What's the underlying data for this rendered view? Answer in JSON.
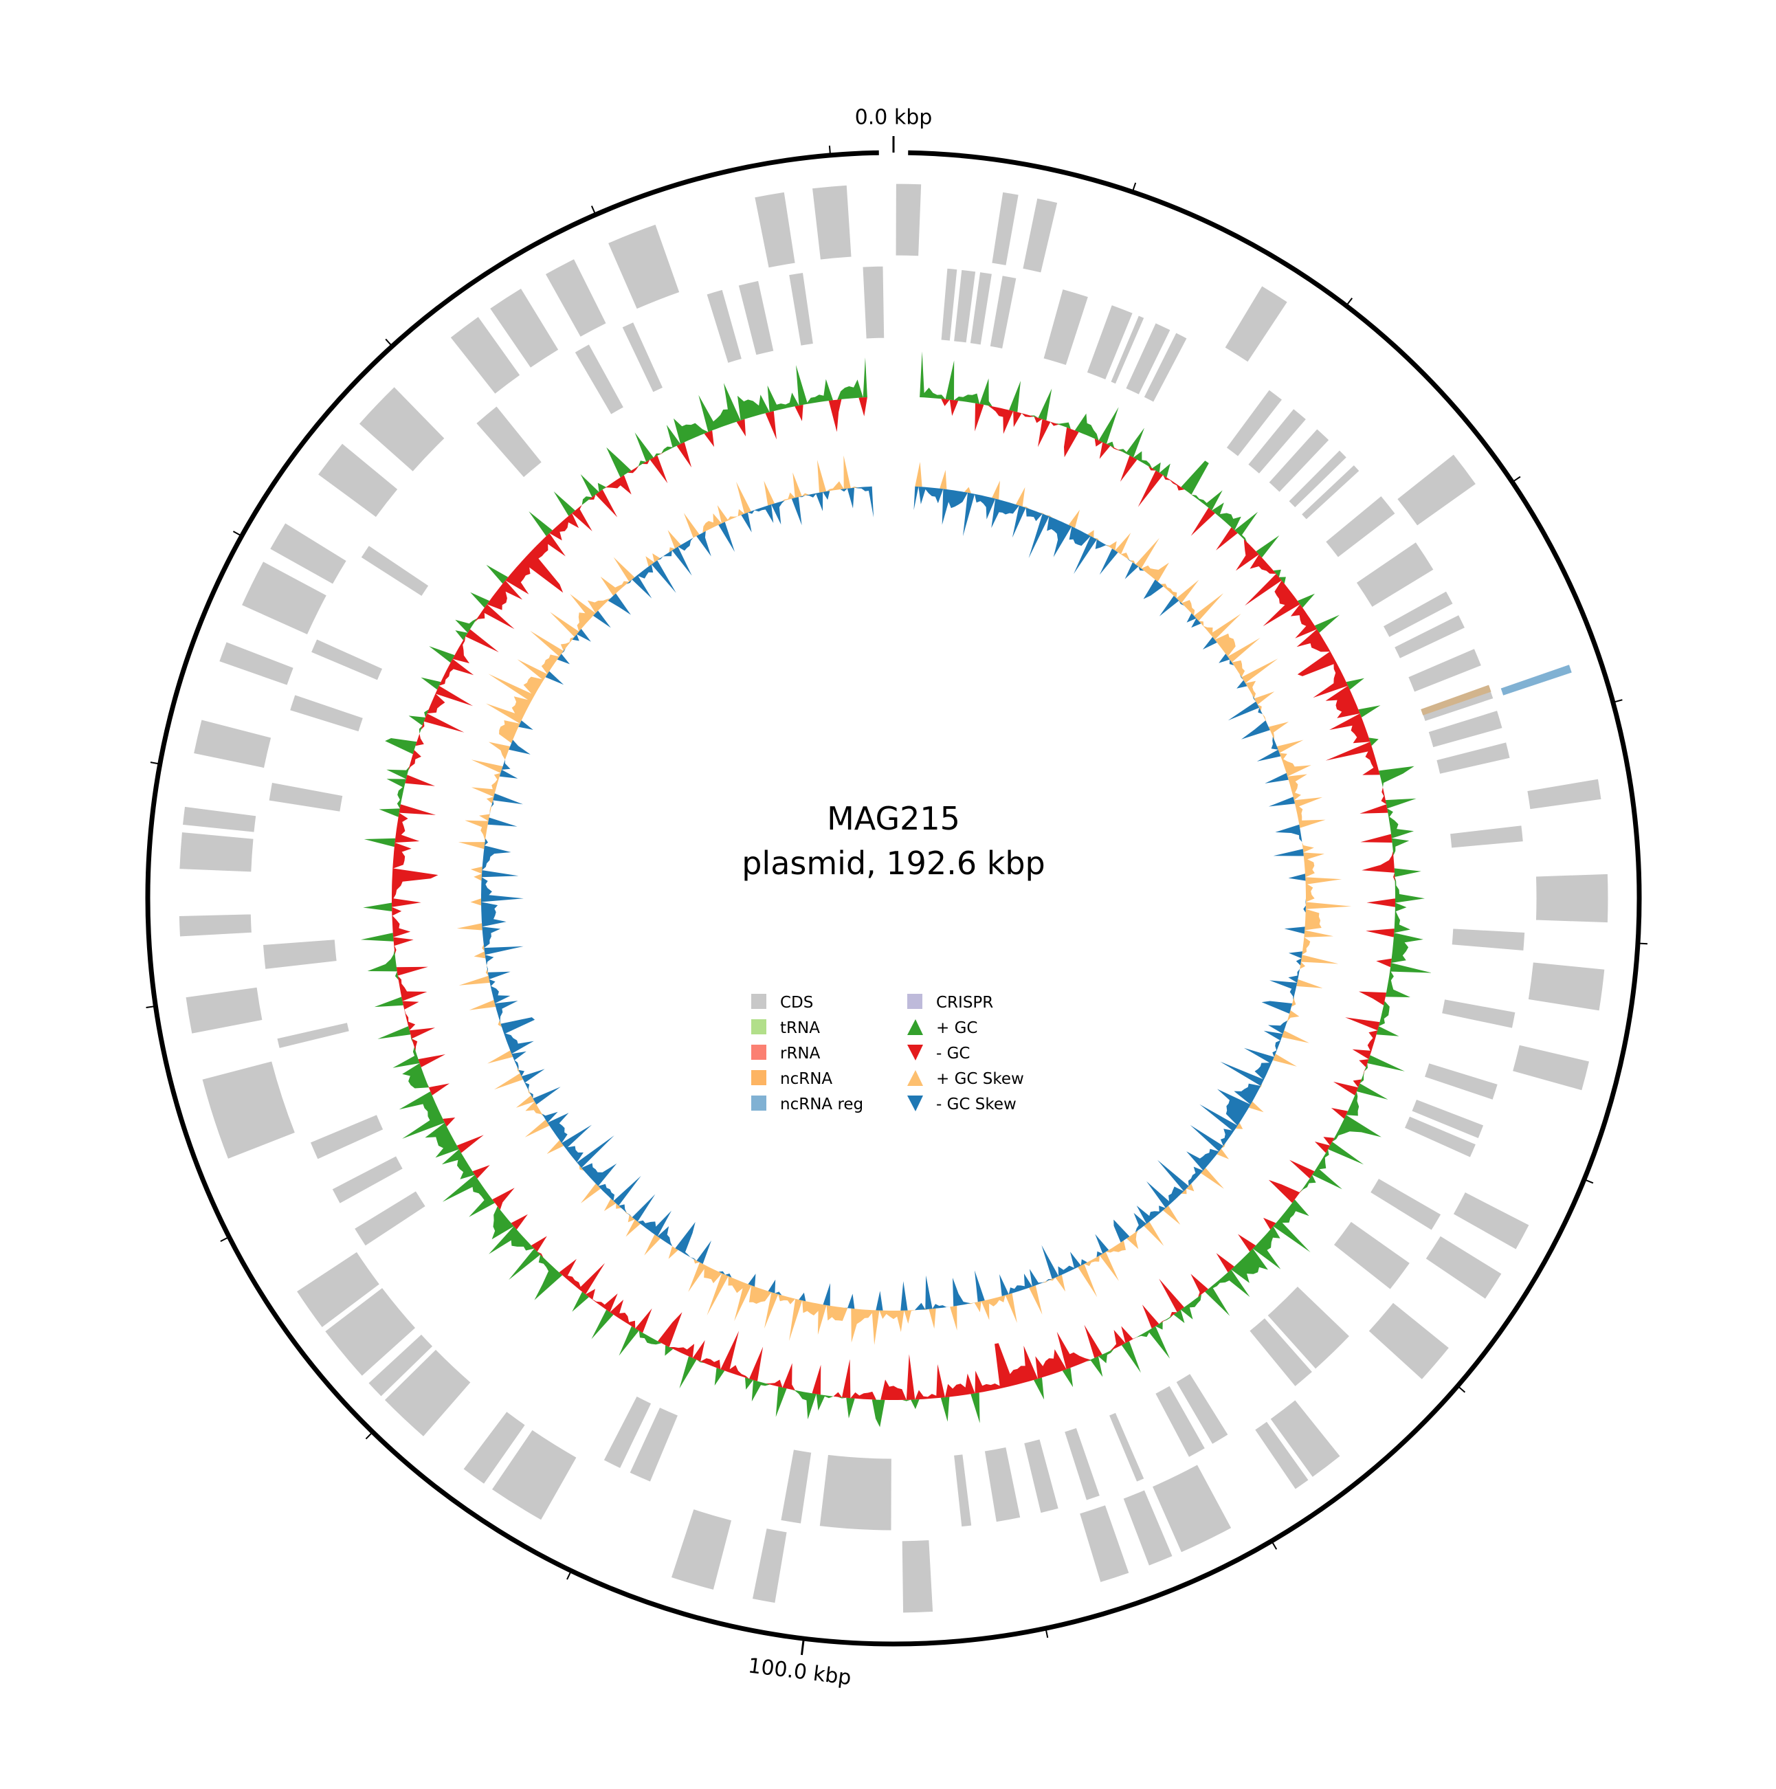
{
  "plot": {
    "title_line1": "MAG215",
    "title_line2": "plasmid, 192.6 kbp",
    "total_kbp": 192.6,
    "tick_labels": [
      {
        "kbp": 0,
        "text": "0.0 kbp"
      },
      {
        "kbp": 100,
        "text": "100.0 kbp"
      }
    ],
    "minor_tick_step_kbp": 10
  },
  "legend": [
    {
      "label": "CDS",
      "color": "#c8c8c8",
      "marker": "square"
    },
    {
      "label": "tRNA",
      "color": "#b2df8a",
      "marker": "square"
    },
    {
      "label": "rRNA",
      "color": "#fb8072",
      "marker": "square"
    },
    {
      "label": "ncRNA",
      "color": "#fdb462",
      "marker": "square"
    },
    {
      "label": "ncRNA reg",
      "color": "#80b1d3",
      "marker": "square"
    },
    {
      "label": "CRISPR",
      "color": "#bebada",
      "marker": "square"
    },
    {
      "label": "+ GC",
      "color": "#33a02c",
      "marker": "triangle-up"
    },
    {
      "label": "- GC",
      "color": "#e31a1c",
      "marker": "triangle-down"
    },
    {
      "label": "+ GC Skew",
      "color": "#fdbf6f",
      "marker": "triangle-up"
    },
    {
      "label": "- GC Skew",
      "color": "#1f78b4",
      "marker": "triangle-down"
    }
  ],
  "colors": {
    "outline": "#000000",
    "cds": "#c8c8c8",
    "gc_pos": "#33a02c",
    "gc_neg": "#e31a1c",
    "skew_pos": "#fdbf6f",
    "skew_neg": "#1f78b4",
    "ncrna": "#d2b48c",
    "ncrna_reg": "#80b1d3"
  },
  "features": {
    "forward_strand_cds": [
      [
        0.1,
        1.2
      ],
      [
        4.7,
        5.4
      ],
      [
        6.2,
        7.1
      ],
      [
        16.6,
        17.9
      ],
      [
        27.6,
        29.2
      ],
      [
        43.0,
        43.9
      ],
      [
        47.1,
        49.2
      ],
      [
        51.2,
        53.0
      ],
      [
        55.2,
        56.5
      ],
      [
        62.7,
        63.9
      ],
      [
        65.1,
        66.4
      ],
      [
        69.0,
        70.8
      ],
      [
        75.6,
        77.1
      ],
      [
        77.3,
        78.0
      ],
      [
        81.2,
        83.6
      ],
      [
        84.0,
        85.1
      ],
      [
        86.0,
        87.3
      ],
      [
        94.6,
        95.9
      ],
      [
        101.4,
        102.4
      ],
      [
        104.1,
        106.0
      ],
      [
        112.1,
        114.6
      ],
      [
        115.0,
        116.1
      ],
      [
        118.3,
        120.6
      ],
      [
        120.8,
        121.6
      ],
      [
        122.0,
        124.5
      ],
      [
        124.7,
        126.6
      ],
      [
        133.0,
        136.6
      ],
      [
        138.6,
        140.2
      ],
      [
        142.8,
        143.7
      ],
      [
        145.7,
        147.3
      ],
      [
        147.6,
        148.4
      ],
      [
        150.7,
        152.2
      ],
      [
        154.8,
        155.7
      ],
      [
        157.4,
        159.5
      ],
      [
        160.1,
        161.4
      ],
      [
        163.9,
        165.6
      ],
      [
        166.7,
        168.9
      ],
      [
        172.1,
        173.6
      ],
      [
        174.2,
        175.8
      ],
      [
        177.0,
        178.4
      ],
      [
        180.0,
        182.2
      ],
      [
        186.6,
        187.9
      ],
      [
        189.1,
        190.6
      ]
    ],
    "reverse_strand_cds": [
      [
        2.6,
        3.1
      ],
      [
        3.3,
        4.0
      ],
      [
        4.2,
        4.8
      ],
      [
        5.3,
        6.0
      ],
      [
        8.3,
        9.6
      ],
      [
        10.8,
        11.9
      ],
      [
        12.2,
        12.5
      ],
      [
        13.1,
        13.9
      ],
      [
        14.2,
        14.8
      ],
      [
        19.5,
        20.3
      ],
      [
        21.0,
        21.8
      ],
      [
        22.5,
        23.3
      ],
      [
        24.0,
        24.5
      ],
      [
        25.0,
        25.4
      ],
      [
        27.0,
        28.1
      ],
      [
        29.8,
        31.4
      ],
      [
        32.6,
        33.3
      ],
      [
        33.9,
        34.6
      ],
      [
        35.7,
        36.6
      ],
      [
        37.7,
        38.3
      ],
      [
        38.9,
        39.8
      ],
      [
        40.5,
        41.3
      ],
      [
        44.6,
        45.4
      ],
      [
        49.8,
        50.7
      ],
      [
        53.7,
        54.5
      ],
      [
        57.3,
        58.1
      ],
      [
        59.4,
        60.1
      ],
      [
        60.4,
        61.1
      ],
      [
        64.2,
        65.1
      ],
      [
        67.0,
        68.6
      ],
      [
        71.6,
        73.9
      ],
      [
        74.1,
        75.2
      ],
      [
        79.2,
        80.1
      ],
      [
        80.5,
        81.4
      ],
      [
        83.8,
        84.2
      ],
      [
        86.1,
        86.8
      ],
      [
        88.2,
        89.1
      ],
      [
        90.1,
        91.3
      ],
      [
        92.5,
        93.0
      ],
      [
        96.4,
        99.9
      ],
      [
        100.8,
        101.8
      ],
      [
        108.4,
        109.5
      ],
      [
        110.0,
        110.9
      ],
      [
        126.6,
        127.6
      ],
      [
        129.0,
        129.8
      ],
      [
        131.4,
        132.3
      ],
      [
        137.1,
        137.6
      ],
      [
        141.0,
        142.2
      ],
      [
        149.2,
        150.1
      ],
      [
        153.7,
        154.5
      ],
      [
        156.7,
        157.4
      ],
      [
        161.9,
        162.6
      ],
      [
        170.5,
        171.8
      ],
      [
        176.4,
        177.2
      ],
      [
        179.0,
        179.6
      ],
      [
        183.4,
        184.2
      ],
      [
        185.0,
        186.0
      ],
      [
        187.5,
        188.2
      ],
      [
        191.1,
        192.1
      ]
    ],
    "ncrna": [
      [
        37.6,
        37.95
      ]
    ],
    "ncrna_reg": [
      [
        37.95,
        38.3
      ]
    ]
  }
}
